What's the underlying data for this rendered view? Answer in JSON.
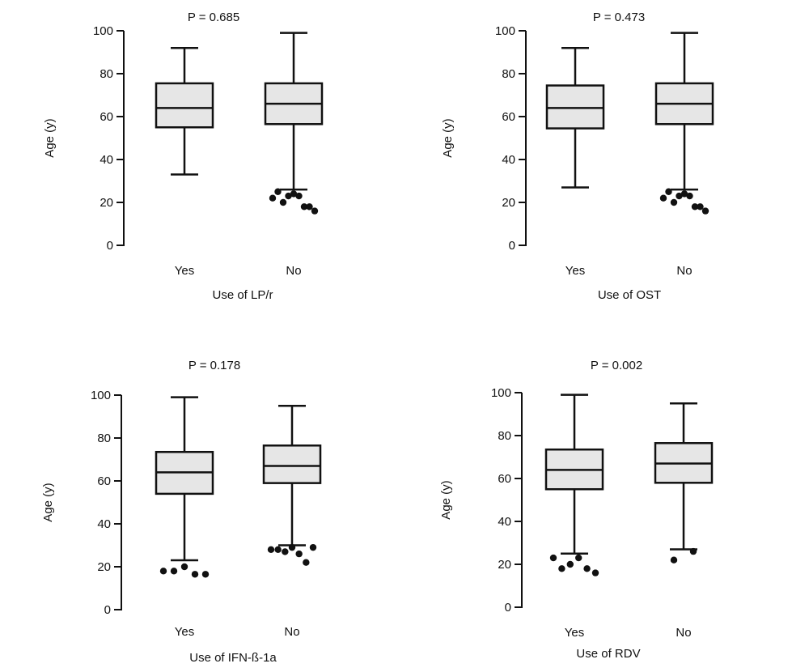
{
  "chart_data": [
    {
      "type": "box",
      "title": "P = 0.685",
      "xlabel": "Use of LP/r",
      "ylabel": "Age (y)",
      "ylim": [
        0,
        100
      ],
      "yticks": [
        "0",
        "20",
        "40",
        "60",
        "80",
        "100"
      ],
      "categories": [
        "Yes",
        "No"
      ],
      "boxes": [
        {
          "min": 33,
          "q1": 55,
          "median": 64,
          "q3": 75.5,
          "max": 92,
          "outliers": []
        },
        {
          "min": 26,
          "q1": 56.5,
          "median": 66,
          "q3": 75.5,
          "max": 99,
          "outliers": [
            22,
            25,
            20,
            23,
            24,
            23,
            18,
            18,
            16
          ]
        }
      ]
    },
    {
      "type": "box",
      "title": "P = 0.473",
      "xlabel": "Use of OST",
      "ylabel": "Age (y)",
      "ylim": [
        0,
        100
      ],
      "yticks": [
        "0",
        "20",
        "40",
        "60",
        "80",
        "100"
      ],
      "categories": [
        "Yes",
        "No"
      ],
      "boxes": [
        {
          "min": 27,
          "q1": 54.5,
          "median": 64,
          "q3": 74.5,
          "max": 92,
          "outliers": []
        },
        {
          "min": 26,
          "q1": 56.5,
          "median": 66,
          "q3": 75.5,
          "max": 99,
          "outliers": [
            22,
            25,
            20,
            23,
            24,
            23,
            18,
            18,
            16
          ]
        }
      ]
    },
    {
      "type": "box",
      "title": "P = 0.178",
      "xlabel": "Use of IFN-ß-1a",
      "ylabel": "Age (y)",
      "ylim": [
        0,
        100
      ],
      "yticks": [
        "0",
        "20",
        "40",
        "60",
        "80",
        "100"
      ],
      "categories": [
        "Yes",
        "No"
      ],
      "boxes": [
        {
          "min": 23,
          "q1": 54,
          "median": 64,
          "q3": 73.5,
          "max": 99,
          "outliers": [
            18,
            18,
            20,
            16.5,
            16.5
          ]
        },
        {
          "min": 30,
          "q1": 59,
          "median": 67,
          "q3": 76.5,
          "max": 95,
          "outliers": [
            28,
            28,
            27,
            29,
            26,
            22,
            29
          ]
        }
      ]
    },
    {
      "type": "box",
      "title": "P = 0.002",
      "xlabel": "Use of RDV",
      "ylabel": "Age (y)",
      "ylim": [
        0,
        100
      ],
      "yticks": [
        "0",
        "20",
        "40",
        "60",
        "80",
        "100"
      ],
      "categories": [
        "Yes",
        "No"
      ],
      "boxes": [
        {
          "min": 25,
          "q1": 55,
          "median": 64,
          "q3": 73.5,
          "max": 99,
          "outliers": [
            23,
            18,
            20,
            23,
            18,
            16
          ]
        },
        {
          "min": 27,
          "q1": 58,
          "median": 67,
          "q3": 76.5,
          "max": 95,
          "outliers": [
            22,
            26
          ]
        }
      ]
    }
  ],
  "colors": {
    "box_fill": "#e6e6e6",
    "stroke": "#111111"
  }
}
